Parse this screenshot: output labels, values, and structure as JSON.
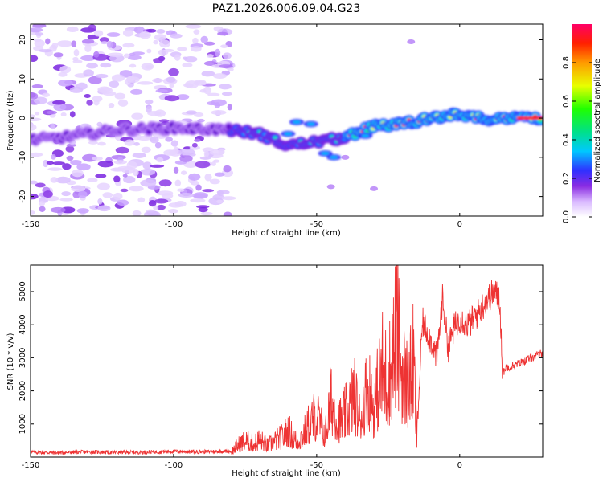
{
  "title": "PAZ1.2026.006.09.04.G23",
  "chart_data": [
    {
      "type": "heatmap",
      "xlabel": "Height of straight line (km)",
      "ylabel": "Frequency (Hz)",
      "xlim": [
        -150,
        29
      ],
      "ylim": [
        -25,
        24
      ],
      "xticks": [
        -150,
        -100,
        -50,
        0
      ],
      "yticks": [
        -20,
        -10,
        0,
        10,
        20
      ],
      "colorbar": {
        "label": "Normalized spectral amplitude",
        "range": [
          0,
          1
        ],
        "ticks": [
          "0.0",
          "0.2",
          "0.4",
          "0.6",
          "0.8"
        ]
      },
      "signal_track": [
        {
          "x": -150,
          "y": -5.5
        },
        {
          "x": -140,
          "y": -5
        },
        {
          "x": -120,
          "y": -3
        },
        {
          "x": -100,
          "y": -2.5
        },
        {
          "x": -80,
          "y": -3
        },
        {
          "x": -70,
          "y": -4
        },
        {
          "x": -60,
          "y": -7
        },
        {
          "x": -50,
          "y": -6
        },
        {
          "x": -40,
          "y": -5
        },
        {
          "x": -30,
          "y": -2
        },
        {
          "x": -20,
          "y": -1.5
        },
        {
          "x": -10,
          "y": 0
        },
        {
          "x": 0,
          "y": 1
        },
        {
          "x": 10,
          "y": -0.5
        },
        {
          "x": 20,
          "y": 0
        },
        {
          "x": 29,
          "y": 0
        }
      ]
    },
    {
      "type": "line",
      "xlabel": "Height of straight line (km)",
      "ylabel": "SNR (10 * v/v)",
      "xlim": [
        -150,
        29
      ],
      "ylim": [
        0,
        5800
      ],
      "xticks": [
        -150,
        -100,
        -50,
        0
      ],
      "yticks": [
        1000,
        2000,
        3000,
        4000,
        5000
      ],
      "color": "#ee3333",
      "series": [
        {
          "name": "SNR",
          "x": [
            -150,
            -140,
            -130,
            -120,
            -110,
            -100,
            -90,
            -80,
            -78,
            -75,
            -72,
            -70,
            -67,
            -65,
            -62,
            -60,
            -57,
            -55,
            -52,
            -50,
            -47,
            -45,
            -42,
            -40,
            -37,
            -35,
            -32,
            -30,
            -27,
            -25,
            -23,
            -22,
            -20,
            -18,
            -16,
            -15,
            -13,
            -10,
            -8,
            -6,
            -4,
            -2,
            0,
            3,
            6,
            9,
            12,
            14,
            15,
            16,
            20,
            25,
            29
          ],
          "values": [
            150,
            130,
            160,
            140,
            150,
            170,
            160,
            180,
            500,
            750,
            600,
            800,
            500,
            700,
            900,
            1200,
            700,
            1000,
            1600,
            1900,
            1000,
            2600,
            1600,
            1900,
            2800,
            1800,
            3200,
            2200,
            4000,
            3400,
            5000,
            5700,
            3800,
            3200,
            4200,
            600,
            4100,
            3500,
            3000,
            4800,
            3300,
            3900,
            4200,
            4000,
            4300,
            4700,
            5000,
            4800,
            2500,
            2700,
            2800,
            3000,
            3150
          ]
        }
      ]
    }
  ]
}
